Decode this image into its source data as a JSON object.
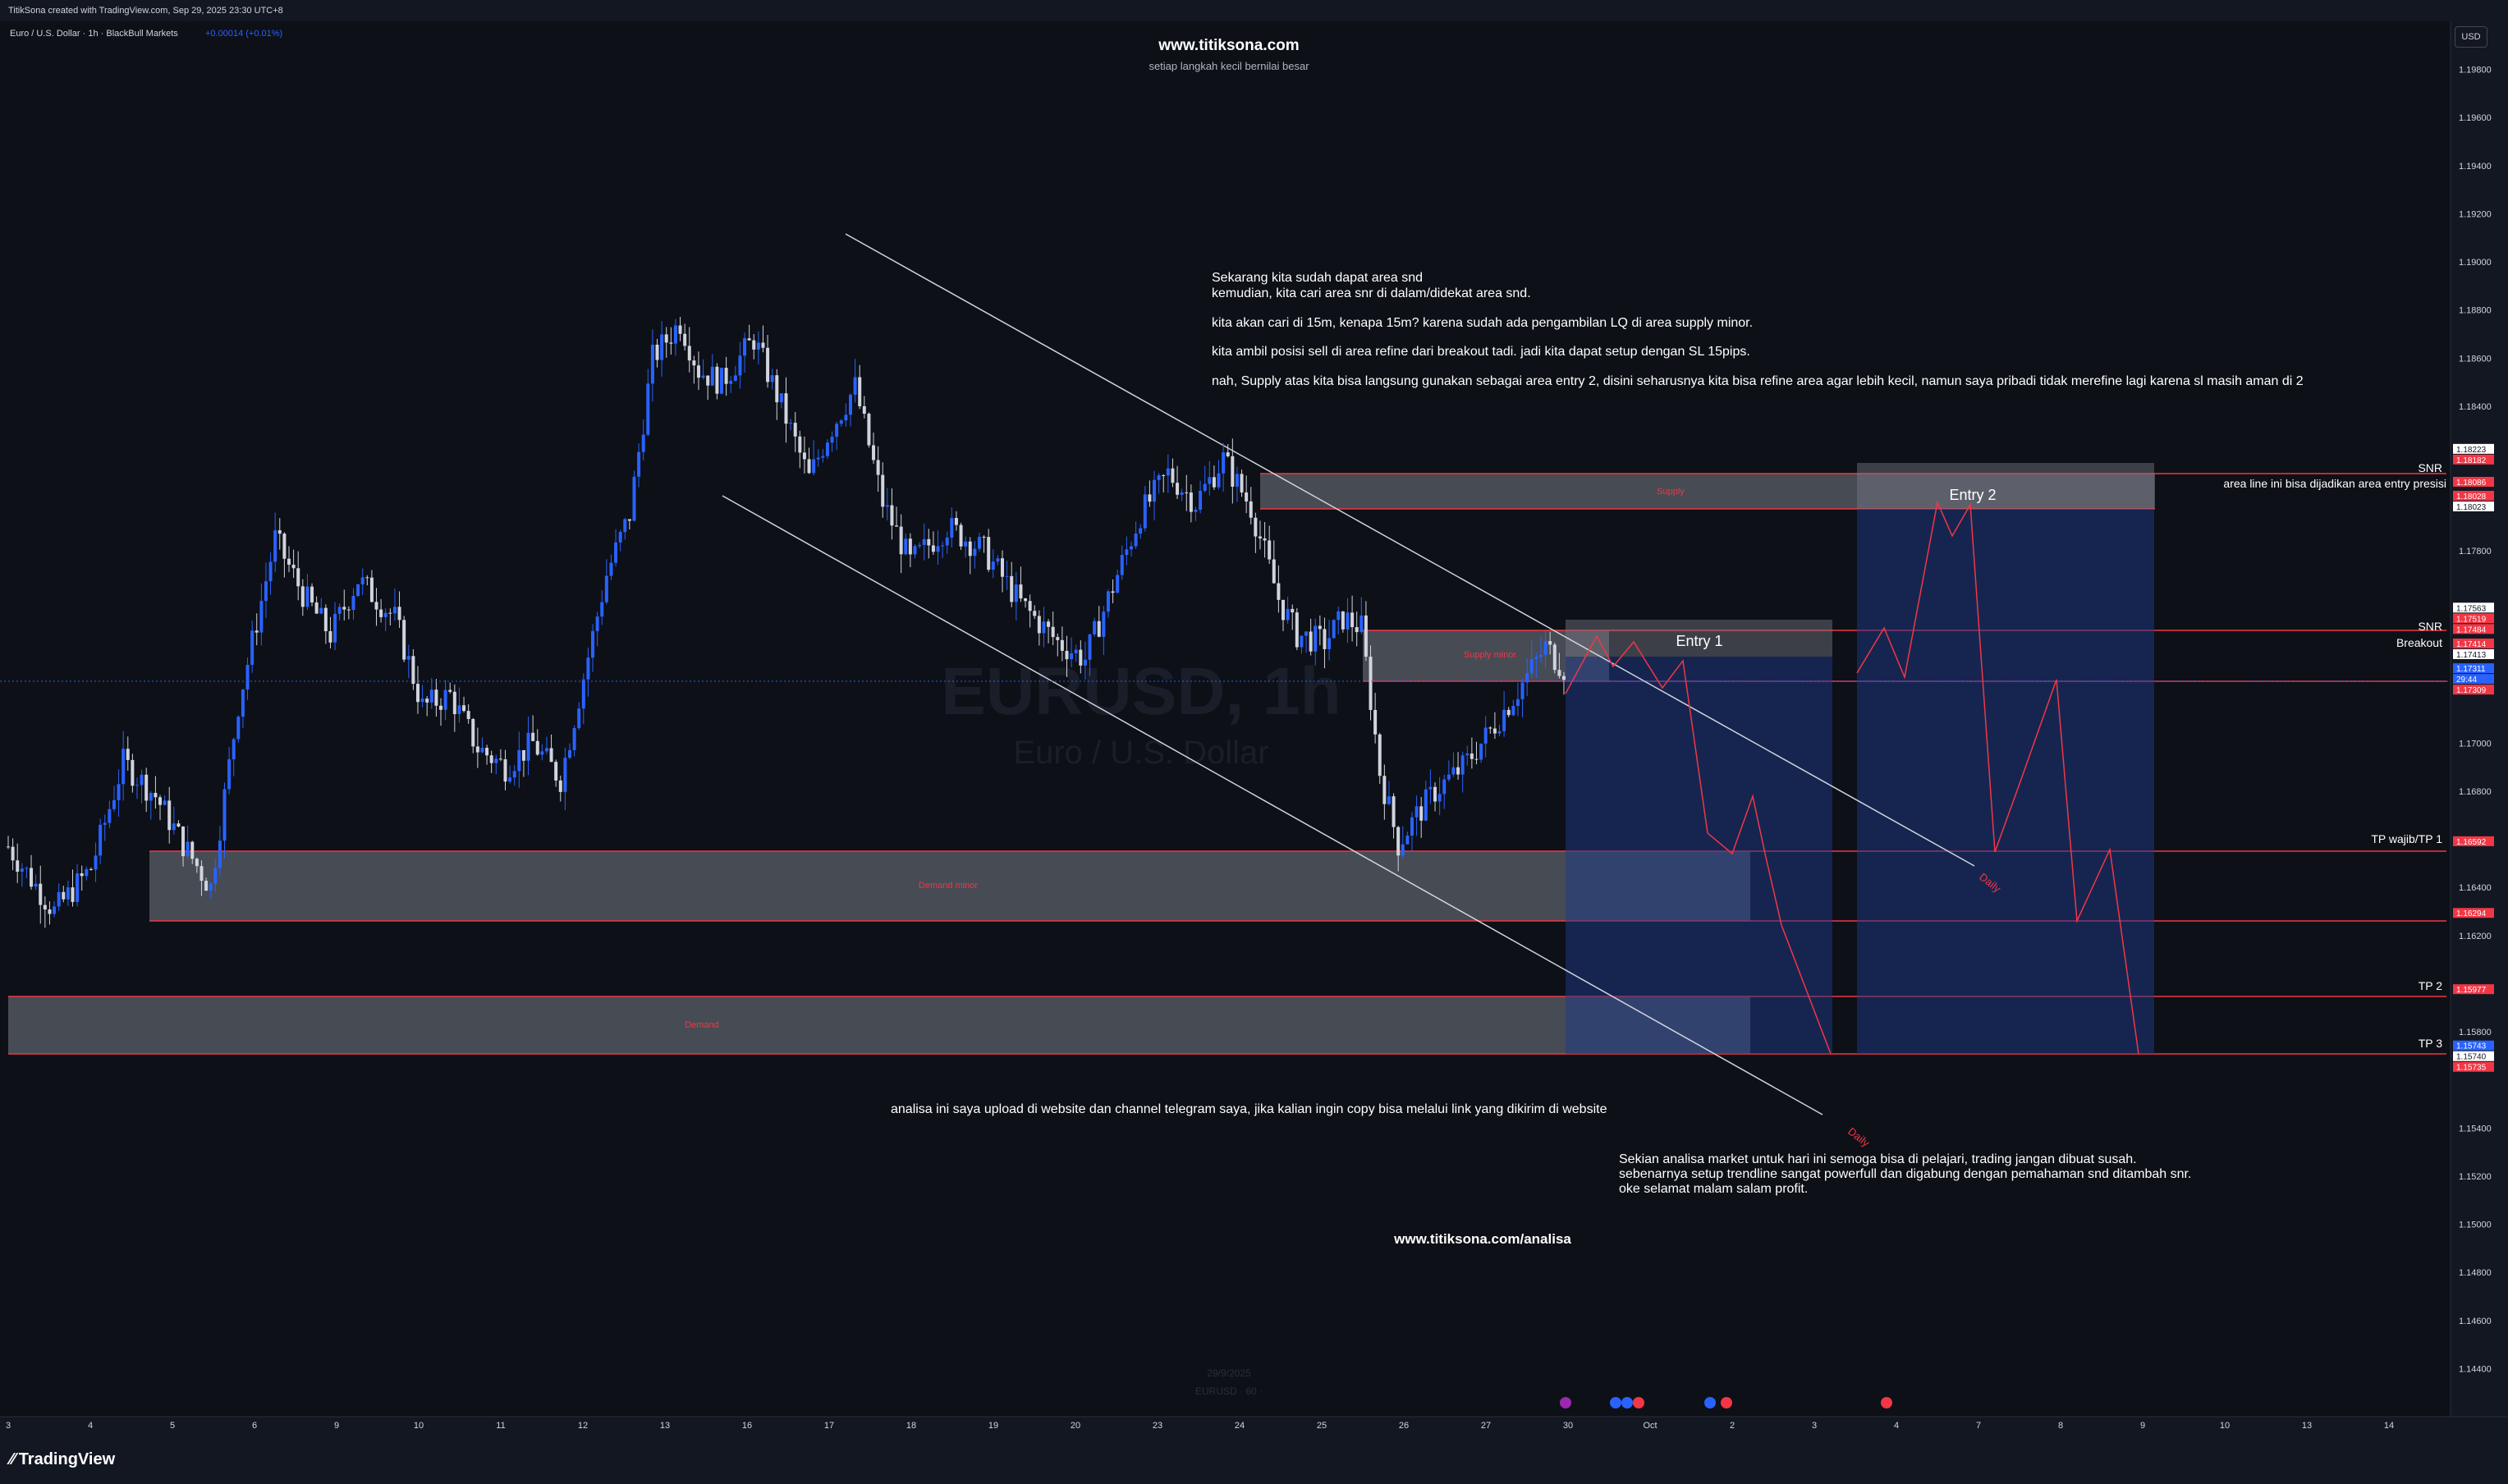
{
  "topbar": {
    "credit": "TitikSona created with TradingView.com, Sep 29, 2025 23:30 UTC+8"
  },
  "symbol_header": {
    "name": "Euro / U.S. Dollar · 1h · BlackBull Markets",
    "change": "+0.00014 (+0.01%)"
  },
  "header_text": {
    "site": "www.titiksona.com",
    "tagline": "setiap langkah kecil bernilai besar"
  },
  "watermark": {
    "symbol": "EURUSD, 1h",
    "subtitle": "Euro / U.S. Dollar"
  },
  "bottom_watermark": {
    "date": "29/9/2025",
    "symbol": "EURUSD · 60 ·"
  },
  "currency_button": "USD",
  "logo_text": "TradingView",
  "notes": {
    "top": [
      "Sekarang kita sudah dapat area snd",
      "kemudian, kita cari area snr di dalam/didekat area snd.",
      "kita akan cari di 15m, kenapa 15m? karena sudah ada pengambilan LQ di area supply minor.",
      "kita ambil posisi sell di area refine dari breakout tadi. jadi kita dapat setup dengan SL 15pips.",
      "nah, Supply atas kita bisa langsung gunakan sebagai area entry 2, disini seharusnya kita bisa refine area agar lebih kecil, namun saya pribadi tidak merefine lagi karena sl masih aman di 2"
    ],
    "upload": "analisa ini saya upload di website dan channel telegram saya, jika kalian ingin copy bisa melalui link yang dikirim di website",
    "closing": [
      "Sekian analisa market untuk hari ini semoga bisa di pelajari, trading jangan dibuat susah.",
      "sebenarnya setup trendline sangat powerfull dan digabung dengan pemahaman snd ditambah snr.",
      "oke selamat malam salam profit."
    ],
    "link": "www.titiksona.com/analisa",
    "area_line": "area line ini bisa dijadikan area entry presisi"
  },
  "zones": {
    "supply": "Supply",
    "supply_minor": "Supply minor",
    "demand_minor": "Demand minor",
    "demand": "Demand"
  },
  "position_labels": {
    "entry1": "Entry 1",
    "entry2": "Entry 2"
  },
  "line_labels": {
    "snr_top": "SNR",
    "snr_mid": "SNR",
    "breakout": "Breakout",
    "tp1": "TP wajib/TP 1",
    "tp2": "TP 2",
    "tp3": "TP 3",
    "daily1": "Daily",
    "daily2": "Daily"
  },
  "colors": {
    "background": "#131722",
    "up": "#2962ff",
    "down": "#d1d4dc",
    "zone_line": "#f23645",
    "zone_fill": "#787b86",
    "position_fill": "#1e3a8a",
    "price_tag_red": "#f23645",
    "price_tag_blue": "#2962ff",
    "trendline": "#d1d4dc",
    "projection": "#f23645"
  },
  "chart_data": {
    "type": "candlestick",
    "title": "Euro / U.S. Dollar · 1h · BlackBull Markets",
    "ylim": [
      1.142,
      1.2
    ],
    "y_ticks": [
      "1.19800",
      "1.19600",
      "1.19400",
      "1.19200",
      "1.19000",
      "1.18800",
      "1.18600",
      "1.18400",
      "1.17800",
      "1.17000",
      "1.16800",
      "1.16400",
      "1.16200",
      "1.15800",
      "1.15400",
      "1.15200",
      "1.15000",
      "1.14800",
      "1.14600",
      "1.14400"
    ],
    "x_ticks": [
      "3",
      "4",
      "5",
      "6",
      "9",
      "10",
      "11",
      "12",
      "13",
      "16",
      "17",
      "18",
      "19",
      "20",
      "23",
      "24",
      "25",
      "26",
      "27",
      "30",
      "Oct",
      "2",
      "3",
      "4",
      "7",
      "8",
      "9",
      "10",
      "13",
      "14"
    ],
    "price_tags": [
      {
        "value": "1.18223",
        "style": "white"
      },
      {
        "value": "1.18182",
        "style": "red"
      },
      {
        "value": "1.18086",
        "style": "red"
      },
      {
        "value": "1.18028",
        "style": "red"
      },
      {
        "value": "1.18023",
        "style": "white"
      },
      {
        "value": "1.17563",
        "style": "white"
      },
      {
        "value": "1.17519",
        "style": "red"
      },
      {
        "value": "1.17484",
        "style": "red"
      },
      {
        "value": "1.17414",
        "style": "red"
      },
      {
        "value": "1.17413",
        "style": "white"
      },
      {
        "value": "1.17311",
        "style": "blue"
      },
      {
        "value": "29:44",
        "style": "blue"
      },
      {
        "value": "1.17309",
        "style": "red"
      },
      {
        "value": "1.16592",
        "style": "red"
      },
      {
        "value": "1.16294",
        "style": "red"
      },
      {
        "value": "1.15977",
        "style": "red"
      },
      {
        "value": "1.15743",
        "style": "blue"
      },
      {
        "value": "1.15740",
        "style": "white"
      },
      {
        "value": "1.15735",
        "style": "red"
      }
    ],
    "path": [
      [
        0,
        1.1657
      ],
      [
        10,
        1.163
      ],
      [
        18,
        1.1648
      ],
      [
        25,
        1.1692
      ],
      [
        32,
        1.1678
      ],
      [
        38,
        1.1658
      ],
      [
        44,
        1.164
      ],
      [
        50,
        1.1716
      ],
      [
        58,
        1.1785
      ],
      [
        64,
        1.1762
      ],
      [
        70,
        1.1745
      ],
      [
        76,
        1.1768
      ],
      [
        84,
        1.1752
      ],
      [
        90,
        1.1715
      ],
      [
        96,
        1.172
      ],
      [
        102,
        1.1698
      ],
      [
        108,
        1.169
      ],
      [
        114,
        1.17
      ],
      [
        120,
        1.1685
      ],
      [
        130,
        1.177
      ],
      [
        135,
        1.1795
      ],
      [
        140,
        1.186
      ],
      [
        146,
        1.1875
      ],
      [
        150,
        1.1855
      ],
      [
        155,
        1.185
      ],
      [
        162,
        1.1868
      ],
      [
        168,
        1.184
      ],
      [
        174,
        1.181
      ],
      [
        178,
        1.1828
      ],
      [
        184,
        1.1848
      ],
      [
        190,
        1.18
      ],
      [
        196,
        1.1775
      ],
      [
        204,
        1.179
      ],
      [
        212,
        1.178
      ],
      [
        220,
        1.1758
      ],
      [
        228,
        1.1742
      ],
      [
        234,
        1.1735
      ],
      [
        240,
        1.1765
      ],
      [
        246,
        1.1795
      ],
      [
        252,
        1.1812
      ],
      [
        258,
        1.18
      ],
      [
        264,
        1.1818
      ],
      [
        270,
        1.1798
      ],
      [
        276,
        1.176
      ],
      [
        280,
        1.1745
      ],
      [
        286,
        1.1742
      ],
      [
        290,
        1.1752
      ],
      [
        294,
        1.1748
      ],
      [
        298,
        1.1688
      ],
      [
        302,
        1.1658
      ],
      [
        306,
        1.167
      ],
      [
        310,
        1.168
      ],
      [
        316,
        1.169
      ],
      [
        322,
        1.1705
      ],
      [
        328,
        1.1722
      ],
      [
        334,
        1.174
      ],
      [
        338,
        1.1731
      ]
    ],
    "path_x_range": [
      0,
      338
    ],
    "zones": [
      {
        "label": "Supply",
        "top": 1.18182,
        "bottom": 1.18028
      },
      {
        "label": "Supply minor",
        "top": 1.17519,
        "bottom": 1.17309
      },
      {
        "label": "Demand minor",
        "top": 1.16592,
        "bottom": 1.16294
      },
      {
        "label": "Demand",
        "top": 1.15977,
        "bottom": 1.15735
      }
    ],
    "levels": [
      {
        "label": "SNR",
        "value": 1.18182
      },
      {
        "label": "SNR",
        "value": 1.17484
      },
      {
        "label": "Breakout",
        "value": 1.17414
      },
      {
        "label": "TP wajib/TP 1",
        "value": 1.16592
      },
      {
        "label": "TP 2",
        "value": 1.15977
      },
      {
        "label": "TP 3",
        "value": 1.15743
      }
    ]
  }
}
